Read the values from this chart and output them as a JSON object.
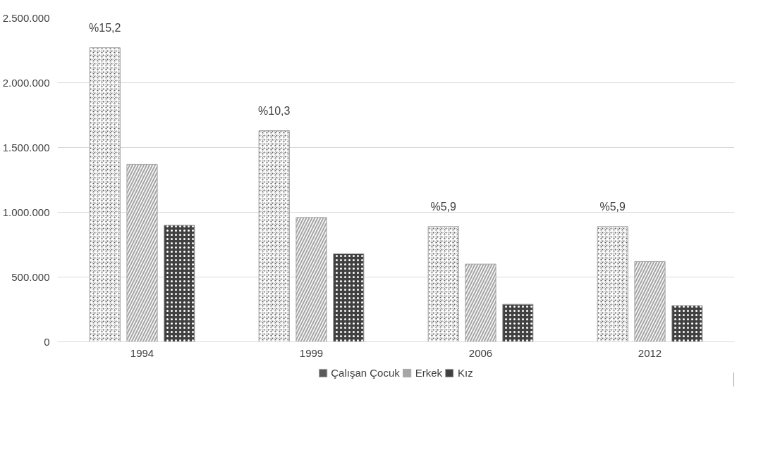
{
  "chart_data": {
    "type": "bar",
    "categories": [
      "1994",
      "1999",
      "2006",
      "2012"
    ],
    "series": [
      {
        "name": "Çalışan Çocuk",
        "color": "#595959",
        "values": [
          2270000,
          1630000,
          890000,
          890000
        ]
      },
      {
        "name": "Erkek",
        "color": "#a6a6a6",
        "values": [
          1370000,
          960000,
          600000,
          620000
        ]
      },
      {
        "name": "Kız",
        "color": "#404040",
        "values": [
          900000,
          680000,
          290000,
          280000
        ]
      }
    ],
    "annotations": [
      "%15,2",
      "%10,3",
      "%5,9",
      "%5,9"
    ],
    "ylim": [
      0,
      2500000
    ],
    "yticks": [
      {
        "value": 0,
        "label": "0"
      },
      {
        "value": 500000,
        "label": "500.000"
      },
      {
        "value": 1000000,
        "label": "1.000.000"
      },
      {
        "value": 1500000,
        "label": "1.500.000"
      },
      {
        "value": 2000000,
        "label": "2.000.000"
      },
      {
        "value": 2500000,
        "label": "2.500.000"
      }
    ],
    "grid": "y",
    "legend": "bottom"
  }
}
